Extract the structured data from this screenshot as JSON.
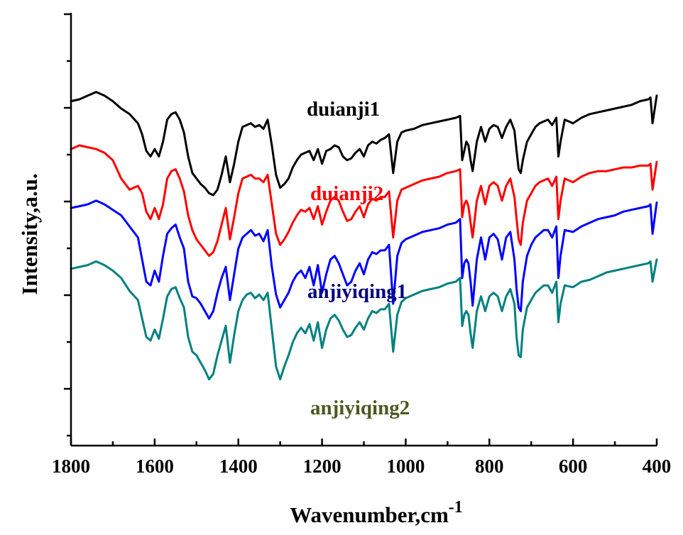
{
  "chart_data": {
    "type": "line",
    "xlabel": "Wavenumber,cm",
    "xlabel_superscript": "-1",
    "ylabel": "Intensity,a.u.",
    "xlim": [
      1800,
      400
    ],
    "x_reversed": true,
    "x_ticks": [
      1800,
      1600,
      1400,
      1200,
      1000,
      800,
      600,
      400
    ],
    "y_tick_labels_shown": false,
    "grid": false,
    "legend": "inline labels",
    "series": [
      {
        "name": "duianji1",
        "color": "#000000",
        "label_color": "#000000",
        "baseline": 0.2,
        "offset": 3.0,
        "x": [
          1800,
          1780,
          1760,
          1740,
          1720,
          1700,
          1680,
          1660,
          1640,
          1630,
          1620,
          1610,
          1600,
          1590,
          1580,
          1570,
          1560,
          1550,
          1540,
          1530,
          1520,
          1510,
          1500,
          1490,
          1480,
          1470,
          1460,
          1450,
          1440,
          1430,
          1420,
          1410,
          1400,
          1390,
          1380,
          1370,
          1360,
          1350,
          1340,
          1330,
          1320,
          1310,
          1300,
          1290,
          1280,
          1270,
          1260,
          1250,
          1240,
          1230,
          1220,
          1210,
          1200,
          1190,
          1180,
          1170,
          1160,
          1150,
          1140,
          1130,
          1120,
          1110,
          1100,
          1090,
          1080,
          1070,
          1060,
          1050,
          1040,
          1030,
          1020,
          1010,
          1000,
          980,
          960,
          940,
          920,
          900,
          880,
          870,
          865,
          860,
          855,
          850,
          845,
          840,
          830,
          820,
          810,
          800,
          790,
          780,
          770,
          760,
          750,
          740,
          735,
          730,
          725,
          720,
          710,
          700,
          690,
          680,
          670,
          660,
          650,
          640,
          635,
          630,
          620,
          600,
          580,
          560,
          540,
          520,
          500,
          480,
          460,
          440,
          420,
          415,
          410,
          400
        ],
        "y": [
          4.2,
          4.3,
          4.5,
          4.7,
          4.5,
          4.2,
          3.8,
          3.5,
          3.0,
          2.4,
          1.5,
          1.2,
          1.6,
          1.2,
          2.0,
          3.2,
          3.5,
          3.6,
          3.2,
          2.5,
          1.2,
          0.3,
          0.0,
          -0.3,
          -0.5,
          -0.8,
          -0.9,
          -0.6,
          0.2,
          1.2,
          -0.2,
          0.8,
          2.0,
          2.8,
          2.9,
          3.0,
          2.8,
          2.9,
          2.7,
          3.2,
          1.8,
          0.2,
          -0.5,
          -0.3,
          0.0,
          0.6,
          1.0,
          1.3,
          1.4,
          1.5,
          1.0,
          1.6,
          0.8,
          1.5,
          1.6,
          1.8,
          1.7,
          1.2,
          1.0,
          1.1,
          1.4,
          1.6,
          1.2,
          1.8,
          2.0,
          1.9,
          2.1,
          2.2,
          2.4,
          0.3,
          2.0,
          2.5,
          2.6,
          2.7,
          2.9,
          3.0,
          3.1,
          3.2,
          3.3,
          3.4,
          1.0,
          1.5,
          2.0,
          1.8,
          1.0,
          0.4,
          2.0,
          2.8,
          2.0,
          2.7,
          2.9,
          2.8,
          2.2,
          2.8,
          3.2,
          2.6,
          1.5,
          0.5,
          0.3,
          1.0,
          2.0,
          2.4,
          2.8,
          3.0,
          3.1,
          3.2,
          2.9,
          3.3,
          1.2,
          2.0,
          3.2,
          3.0,
          3.3,
          3.5,
          3.6,
          3.7,
          3.8,
          3.9,
          4.0,
          4.2,
          4.3,
          4.4,
          3.0,
          4.5
        ],
        "label_value_x": 1100,
        "label_value_y": 1.6
      },
      {
        "name": "duianji2",
        "color": "#ff0000",
        "label_color": "#ff0000",
        "baseline": 0.0,
        "offset": 0.0,
        "x": [
          1800,
          1780,
          1760,
          1740,
          1720,
          1700,
          1680,
          1660,
          1640,
          1630,
          1620,
          1610,
          1600,
          1590,
          1580,
          1570,
          1560,
          1550,
          1540,
          1530,
          1520,
          1510,
          1500,
          1490,
          1480,
          1470,
          1460,
          1450,
          1440,
          1430,
          1420,
          1410,
          1400,
          1390,
          1380,
          1370,
          1360,
          1350,
          1340,
          1330,
          1320,
          1310,
          1300,
          1290,
          1280,
          1270,
          1260,
          1250,
          1240,
          1230,
          1220,
          1210,
          1200,
          1190,
          1180,
          1170,
          1160,
          1150,
          1140,
          1130,
          1120,
          1110,
          1100,
          1090,
          1080,
          1070,
          1060,
          1050,
          1040,
          1030,
          1020,
          1010,
          1000,
          980,
          960,
          940,
          920,
          900,
          880,
          870,
          865,
          860,
          855,
          850,
          845,
          840,
          830,
          820,
          810,
          800,
          790,
          780,
          770,
          760,
          750,
          740,
          735,
          730,
          725,
          720,
          710,
          700,
          690,
          680,
          670,
          660,
          650,
          640,
          635,
          630,
          620,
          600,
          580,
          560,
          540,
          520,
          500,
          480,
          460,
          440,
          420,
          415,
          410,
          400
        ],
        "y": [
          4.6,
          4.8,
          4.7,
          4.6,
          4.4,
          4.0,
          3.0,
          2.4,
          2.6,
          2.2,
          1.2,
          0.8,
          1.4,
          0.8,
          1.6,
          3.0,
          3.4,
          3.5,
          3.0,
          2.3,
          1.0,
          0.2,
          -0.3,
          -0.6,
          -0.9,
          -1.2,
          -1.0,
          -0.4,
          0.5,
          1.4,
          -0.3,
          0.9,
          2.2,
          3.0,
          3.1,
          3.2,
          3.0,
          3.0,
          2.8,
          3.2,
          1.6,
          0.0,
          -0.6,
          -0.3,
          0.1,
          0.6,
          1.0,
          1.3,
          1.2,
          1.4,
          0.8,
          1.5,
          0.5,
          1.2,
          1.8,
          2.0,
          1.8,
          1.2,
          0.7,
          0.8,
          1.2,
          1.5,
          0.9,
          1.6,
          1.9,
          1.8,
          2.0,
          2.0,
          2.3,
          -0.2,
          1.8,
          2.4,
          2.5,
          2.7,
          2.9,
          3.0,
          3.1,
          3.3,
          3.4,
          3.5,
          0.9,
          1.6,
          1.8,
          1.5,
          0.6,
          -0.2,
          1.8,
          2.6,
          1.6,
          2.6,
          2.8,
          2.6,
          1.8,
          2.6,
          3.0,
          2.0,
          0.8,
          -0.3,
          -0.6,
          0.6,
          1.8,
          2.2,
          2.6,
          2.8,
          2.9,
          3.0,
          2.6,
          3.1,
          0.8,
          1.8,
          3.0,
          2.8,
          3.1,
          3.3,
          3.4,
          3.4,
          3.5,
          3.6,
          3.6,
          3.7,
          3.7,
          3.8,
          2.4,
          3.9
        ],
        "label_value_x": 1100,
        "label_value_y": -0.1
      },
      {
        "name": "anjiyiqing1",
        "color": "#0000ff",
        "label_color": "#000080",
        "baseline": -3.0,
        "offset": -3.0,
        "x": [
          1800,
          1780,
          1760,
          1740,
          1720,
          1700,
          1680,
          1660,
          1640,
          1630,
          1620,
          1610,
          1600,
          1590,
          1580,
          1570,
          1560,
          1550,
          1540,
          1530,
          1520,
          1510,
          1500,
          1490,
          1480,
          1470,
          1460,
          1450,
          1440,
          1430,
          1420,
          1410,
          1400,
          1390,
          1380,
          1370,
          1360,
          1350,
          1340,
          1330,
          1320,
          1310,
          1300,
          1290,
          1280,
          1270,
          1260,
          1250,
          1240,
          1230,
          1220,
          1210,
          1200,
          1190,
          1180,
          1170,
          1160,
          1150,
          1140,
          1130,
          1120,
          1110,
          1100,
          1090,
          1080,
          1070,
          1060,
          1050,
          1040,
          1030,
          1020,
          1010,
          1000,
          980,
          960,
          940,
          920,
          900,
          880,
          870,
          865,
          860,
          855,
          850,
          845,
          840,
          830,
          820,
          810,
          800,
          790,
          780,
          770,
          760,
          750,
          740,
          735,
          730,
          725,
          720,
          710,
          700,
          690,
          680,
          670,
          660,
          650,
          640,
          635,
          630,
          620,
          600,
          580,
          560,
          540,
          520,
          500,
          480,
          460,
          440,
          420,
          415,
          410,
          400
        ],
        "y": [
          4.4,
          4.5,
          4.6,
          4.8,
          4.6,
          4.3,
          4.0,
          3.4,
          2.8,
          1.6,
          0.4,
          0.2,
          1.0,
          0.4,
          1.8,
          3.0,
          3.3,
          3.5,
          2.8,
          2.2,
          0.4,
          -0.4,
          -0.5,
          -0.8,
          -1.2,
          -1.6,
          -1.2,
          -0.2,
          0.6,
          1.2,
          -0.6,
          0.8,
          2.2,
          2.8,
          3.0,
          3.2,
          2.9,
          3.0,
          2.6,
          3.2,
          1.2,
          -0.3,
          -1.0,
          -0.6,
          -0.2,
          0.4,
          0.8,
          1.0,
          0.6,
          1.2,
          0.2,
          1.3,
          -0.2,
          0.8,
          1.6,
          1.8,
          1.4,
          0.8,
          0.2,
          0.4,
          1.0,
          1.4,
          0.8,
          1.6,
          2.0,
          1.9,
          2.1,
          2.1,
          2.4,
          -0.8,
          1.8,
          2.5,
          2.7,
          2.9,
          3.1,
          3.2,
          3.3,
          3.5,
          3.6,
          3.8,
          0.6,
          1.4,
          1.6,
          1.4,
          0.4,
          -0.9,
          1.6,
          2.8,
          1.6,
          2.8,
          3.0,
          2.7,
          1.6,
          2.8,
          3.1,
          1.6,
          0.0,
          -1.0,
          -1.2,
          0.4,
          1.8,
          2.4,
          2.8,
          3.0,
          3.2,
          3.2,
          2.8,
          3.4,
          0.6,
          1.8,
          3.2,
          3.1,
          3.4,
          3.6,
          3.8,
          3.9,
          4.0,
          4.2,
          4.3,
          4.4,
          4.5,
          4.6,
          3.0,
          4.7
        ],
        "label_value_x": 1100,
        "label_value_y": -1.0
      },
      {
        "name": "anjiyiqing2",
        "color": "#008080",
        "label_color": "#4a5a1f",
        "baseline": -6.4,
        "offset": -6.4,
        "x": [
          1800,
          1780,
          1760,
          1740,
          1720,
          1700,
          1680,
          1660,
          1640,
          1630,
          1620,
          1610,
          1600,
          1590,
          1580,
          1570,
          1560,
          1550,
          1540,
          1530,
          1520,
          1510,
          1500,
          1490,
          1480,
          1470,
          1460,
          1450,
          1440,
          1430,
          1420,
          1410,
          1400,
          1390,
          1380,
          1370,
          1360,
          1350,
          1340,
          1330,
          1320,
          1310,
          1300,
          1290,
          1280,
          1270,
          1260,
          1250,
          1240,
          1230,
          1220,
          1210,
          1200,
          1190,
          1180,
          1170,
          1160,
          1150,
          1140,
          1130,
          1120,
          1110,
          1100,
          1090,
          1080,
          1070,
          1060,
          1050,
          1040,
          1030,
          1020,
          1010,
          1000,
          980,
          960,
          940,
          920,
          900,
          880,
          870,
          865,
          860,
          855,
          850,
          845,
          840,
          830,
          820,
          810,
          800,
          790,
          780,
          770,
          760,
          750,
          740,
          735,
          730,
          725,
          720,
          710,
          700,
          690,
          680,
          670,
          660,
          650,
          640,
          635,
          630,
          620,
          600,
          580,
          560,
          540,
          520,
          500,
          480,
          460,
          440,
          420,
          415,
          410,
          400
        ],
        "y": [
          4.5,
          4.6,
          4.7,
          4.9,
          4.7,
          4.4,
          4.0,
          3.3,
          2.8,
          1.8,
          0.8,
          0.6,
          1.2,
          0.7,
          1.8,
          3.0,
          3.4,
          3.5,
          2.9,
          2.4,
          0.8,
          0.0,
          -0.2,
          -0.6,
          -1.0,
          -1.5,
          -1.2,
          -0.2,
          0.6,
          1.4,
          -0.6,
          0.9,
          2.2,
          2.8,
          3.1,
          3.2,
          2.9,
          3.1,
          2.8,
          3.2,
          1.2,
          -0.8,
          -1.5,
          -0.8,
          -0.2,
          0.5,
          1.0,
          1.3,
          1.0,
          1.5,
          0.6,
          1.6,
          0.2,
          1.2,
          1.8,
          2.0,
          1.7,
          1.2,
          0.8,
          0.9,
          1.3,
          1.6,
          1.2,
          1.8,
          2.2,
          2.1,
          2.3,
          2.3,
          2.6,
          0.0,
          2.0,
          2.7,
          2.9,
          3.1,
          3.3,
          3.4,
          3.5,
          3.7,
          3.8,
          4.0,
          1.4,
          2.0,
          2.2,
          2.0,
          1.0,
          0.2,
          2.2,
          3.0,
          2.2,
          3.0,
          3.2,
          3.0,
          2.2,
          3.0,
          3.4,
          2.6,
          0.8,
          -0.2,
          -0.3,
          1.2,
          2.4,
          2.8,
          3.2,
          3.4,
          3.6,
          3.6,
          3.2,
          3.8,
          1.6,
          2.6,
          3.6,
          3.5,
          3.8,
          3.9,
          4.1,
          4.3,
          4.4,
          4.5,
          4.6,
          4.7,
          4.8,
          4.9,
          3.8,
          5.0
        ],
        "label_value_x": 1100,
        "label_value_y": -2.0
      }
    ]
  }
}
